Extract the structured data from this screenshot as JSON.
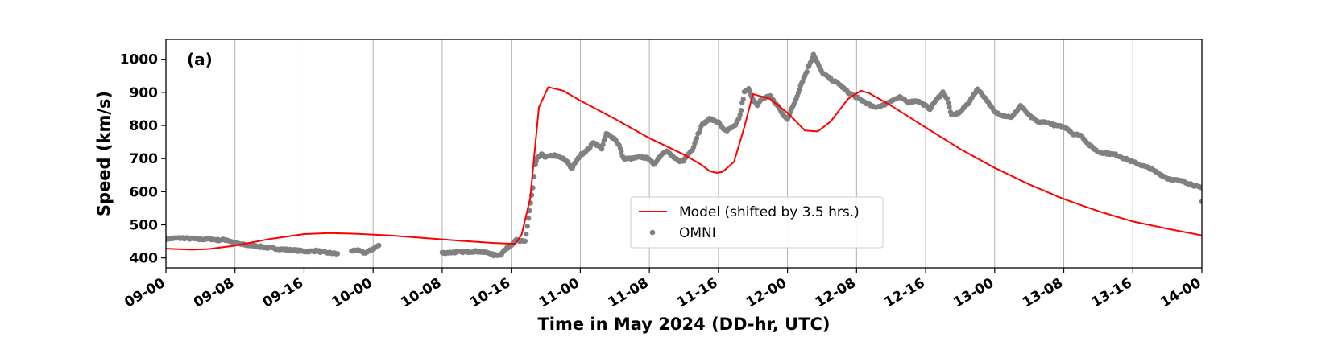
{
  "colors": {
    "model": "#ff0000",
    "omni": "#808080",
    "grid": "#b0b0b0",
    "axes": "#000000"
  },
  "chart_data": {
    "type": "line",
    "panel_label": "(a)",
    "xlabel": "Time in May 2024 (DD-hr, UTC)",
    "ylabel": "Speed (km/s)",
    "x_unit": "hours since 09-00",
    "xlim": [
      0,
      120
    ],
    "ylim": [
      370,
      1060
    ],
    "x_ticks": [
      0,
      8,
      16,
      24,
      32,
      40,
      48,
      56,
      64,
      72,
      80,
      88,
      96,
      104,
      112,
      120
    ],
    "x_tick_labels": [
      "09-00",
      "09-08",
      "09-16",
      "10-00",
      "10-08",
      "10-16",
      "11-00",
      "11-08",
      "11-16",
      "12-00",
      "12-08",
      "12-16",
      "13-00",
      "13-08",
      "13-16",
      "14-00"
    ],
    "y_ticks": [
      400,
      500,
      600,
      700,
      800,
      900,
      1000
    ],
    "y_tick_labels": [
      "400",
      "500",
      "600",
      "700",
      "800",
      "900",
      "1000"
    ],
    "grid": "vertical",
    "legend_position": "lower-center",
    "series": [
      {
        "name": "Model (shifted by 3.5 hrs.)",
        "style": "line",
        "x": [
          0,
          3,
          5,
          8,
          12,
          16,
          19,
          22,
          26,
          30,
          34,
          38,
          40,
          40.5,
          41.2,
          42.2,
          43.2,
          44.3,
          46,
          48,
          52,
          56,
          60,
          62,
          63,
          63.8,
          64.5,
          65.8,
          67,
          68,
          70,
          72,
          73,
          74,
          75.5,
          77,
          79,
          80.5,
          81.5,
          84,
          88,
          92,
          96,
          100,
          104,
          108,
          112,
          116,
          120
        ],
        "y": [
          428,
          425,
          427,
          437,
          457,
          472,
          475,
          473,
          468,
          460,
          452,
          445,
          443,
          443,
          470,
          580,
          855,
          916,
          905,
          875,
          820,
          762,
          712,
          682,
          662,
          657,
          660,
          690,
          795,
          895,
          880,
          838,
          812,
          785,
          782,
          812,
          880,
          905,
          897,
          860,
          794,
          729,
          672,
          622,
          578,
          541,
          510,
          488,
          468
        ]
      },
      {
        "name": "OMNI",
        "style": "points",
        "anchors_x": [
          0,
          2,
          4,
          5,
          6,
          7,
          8,
          9,
          10,
          12,
          14,
          15,
          16,
          16.8,
          17.5,
          18,
          19,
          20,
          20.8,
          21.5,
          22,
          23,
          23.5,
          24,
          24.8,
          31.8,
          32,
          34,
          36,
          37.5,
          38,
          38.8,
          39,
          40,
          40.5,
          41,
          41.6,
          42,
          42.5,
          42.8,
          43,
          43.5,
          44,
          45,
          46,
          46.5,
          47,
          48,
          49,
          49.5,
          50,
          50.5,
          51,
          52,
          52.5,
          53,
          54,
          55,
          56,
          56.5,
          57,
          57.5,
          58,
          58.5,
          59,
          59.5,
          60,
          61,
          62,
          63,
          64,
          64.5,
          65,
          66,
          66.5,
          67,
          67.5,
          68,
          68.5,
          69,
          70,
          70.5,
          71,
          71.5,
          72,
          72.5,
          73,
          73.5,
          74,
          75,
          76,
          77,
          78,
          79,
          80,
          81,
          82,
          83,
          84,
          85,
          86,
          87,
          88,
          88.5,
          89,
          90,
          90.5,
          91,
          92,
          93,
          94,
          95,
          95.5,
          96,
          97,
          98,
          99,
          100,
          101,
          102,
          103,
          104,
          104.5,
          105,
          106,
          107,
          108,
          110,
          112,
          114,
          116,
          118,
          119,
          120
        ],
        "anchors_y": [
          458,
          460,
          456,
          458,
          454,
          455,
          445,
          440,
          437,
          430,
          425,
          423,
          420,
          420,
          422,
          418,
          415,
          412,
          null,
          420,
          425,
          415,
          420,
          428,
          440,
          null,
          415,
          418,
          420,
          415,
          408,
          410,
          418,
          440,
          455,
          450,
          450,
          520,
          610,
          680,
          700,
          712,
          705,
          710,
          700,
          690,
          670,
          710,
          730,
          750,
          740,
          730,
          775,
          760,
          740,
          700,
          700,
          705,
          700,
          680,
          700,
          715,
          725,
          710,
          700,
          690,
          695,
          730,
          800,
          820,
          810,
          790,
          785,
          800,
          830,
          900,
          910,
          880,
          860,
          880,
          890,
          870,
          855,
          830,
          820,
          850,
          880,
          920,
          950,
          1015,
          960,
          940,
          925,
          900,
          885,
          870,
          855,
          860,
          875,
          885,
          870,
          875,
          860,
          850,
          870,
          900,
          880,
          830,
          840,
          870,
          910,
          880,
          860,
          840,
          830,
          825,
          860,
          830,
          810,
          810,
          800,
          795,
          790,
          775,
          770,
          740,
          720,
          712,
          690,
          670,
          640,
          630,
          620,
          610,
          598,
          588,
          576,
          570
        ]
      }
    ]
  }
}
